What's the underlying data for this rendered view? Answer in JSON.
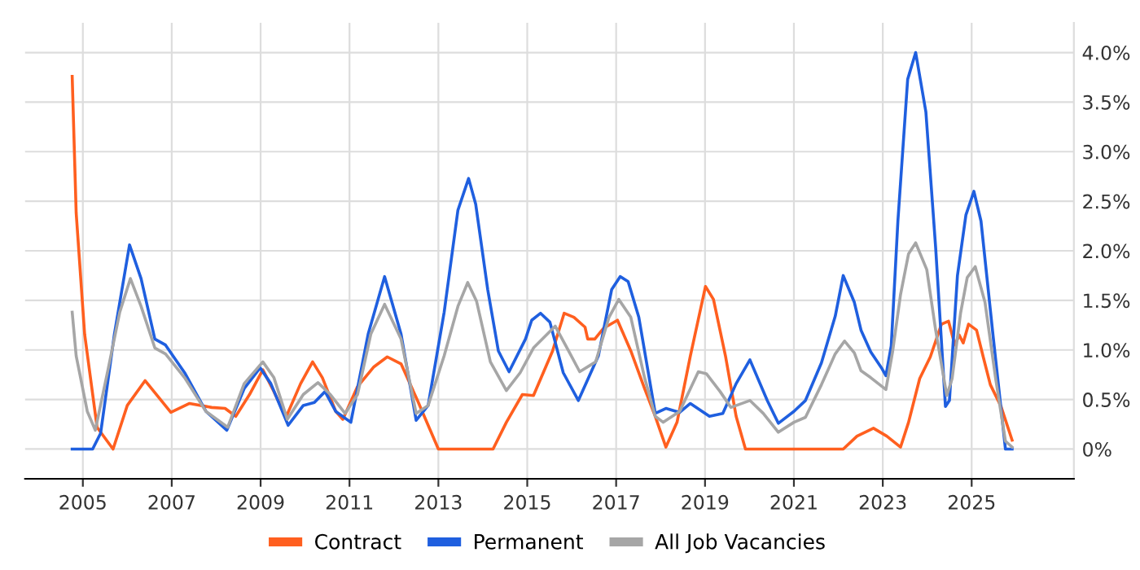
{
  "chart_data": {
    "type": "line",
    "xlim": [
      2003.7,
      2027.3
    ],
    "ylim": [
      -0.3,
      4.3
    ],
    "xticks": [
      2005,
      2007,
      2009,
      2011,
      2013,
      2015,
      2017,
      2019,
      2021,
      2023,
      2025
    ],
    "yticks": [
      {
        "value": 0,
        "label": "0%"
      },
      {
        "value": 0.5,
        "label": "0.5%"
      },
      {
        "value": 1,
        "label": "1.0%"
      },
      {
        "value": 1.5,
        "label": "1.5%"
      },
      {
        "value": 2,
        "label": "2.0%"
      },
      {
        "value": 2.5,
        "label": "2.5%"
      },
      {
        "value": 3,
        "label": "3.0%"
      },
      {
        "value": 3.5,
        "label": "3.5%"
      },
      {
        "value": 4,
        "label": "4.0%"
      }
    ],
    "grid": true,
    "legend": "bottom",
    "marker": "none",
    "line_style": "solid",
    "series": [
      {
        "name": "Contract",
        "color": "#ff5f1f",
        "x": [
          2004.76,
          2004.85,
          2005.04,
          2005.32,
          2005.68,
          2006.0,
          2006.4,
          2006.98,
          2007.4,
          2007.9,
          2008.2,
          2008.44,
          2008.75,
          2009.05,
          2009.3,
          2009.57,
          2009.9,
          2010.17,
          2010.39,
          2010.69,
          2010.85,
          2011.18,
          2011.55,
          2011.85,
          2012.16,
          2012.53,
          2013.0,
          2014.23,
          2014.53,
          2014.89,
          2015.14,
          2015.57,
          2015.83,
          2016.05,
          2016.3,
          2016.36,
          2016.52,
          2016.72,
          2017.03,
          2017.33,
          2017.64,
          2017.88,
          2018.12,
          2018.37,
          2018.67,
          2019.01,
          2019.19,
          2019.46,
          2019.7,
          2019.91,
          2022.11,
          2022.42,
          2022.79,
          2023.09,
          2023.4,
          2023.58,
          2023.83,
          2024.07,
          2024.32,
          2024.48,
          2024.62,
          2024.72,
          2024.81,
          2024.93,
          2025.11,
          2025.26,
          2025.42,
          2025.66,
          2025.91
        ],
        "values": [
          3.76,
          2.38,
          1.16,
          0.22,
          0,
          0.44,
          0.69,
          0.37,
          0.46,
          0.42,
          0.41,
          0.33,
          0.55,
          0.8,
          0.58,
          0.32,
          0.66,
          0.88,
          0.72,
          0.38,
          0.3,
          0.63,
          0.83,
          0.93,
          0.86,
          0.49,
          0,
          0,
          0.27,
          0.55,
          0.54,
          0.99,
          1.37,
          1.33,
          1.23,
          1.11,
          1.11,
          1.22,
          1.3,
          0.99,
          0.61,
          0.33,
          0.02,
          0.27,
          0.94,
          1.64,
          1.51,
          0.94,
          0.33,
          0,
          0,
          0.13,
          0.21,
          0.13,
          0.02,
          0.27,
          0.71,
          0.93,
          1.26,
          1.29,
          1.05,
          1.15,
          1.07,
          1.26,
          1.2,
          0.93,
          0.65,
          0.43,
          0.09
        ]
      },
      {
        "name": "Permanent",
        "color": "#1f5fdf",
        "x": [
          2004.76,
          2005.22,
          2005.4,
          2005.71,
          2006.05,
          2006.31,
          2006.62,
          2006.86,
          2007.29,
          2007.77,
          2008.24,
          2008.63,
          2008.99,
          2009.23,
          2009.62,
          2009.96,
          2010.21,
          2010.45,
          2010.69,
          2011.03,
          2011.42,
          2011.79,
          2012.16,
          2012.5,
          2012.77,
          2013.13,
          2013.44,
          2013.68,
          2013.84,
          2014.11,
          2014.35,
          2014.59,
          2014.96,
          2015.1,
          2015.3,
          2015.51,
          2015.81,
          2016.15,
          2016.6,
          2016.9,
          2017.09,
          2017.27,
          2017.51,
          2017.88,
          2018.12,
          2018.43,
          2018.67,
          2019.1,
          2019.4,
          2019.7,
          2020.01,
          2020.4,
          2020.65,
          2021.0,
          2021.26,
          2021.62,
          2021.93,
          2022.11,
          2022.36,
          2022.51,
          2022.73,
          2022.97,
          2023.07,
          2023.19,
          2023.34,
          2023.56,
          2023.74,
          2023.97,
          2024.19,
          2024.41,
          2024.5,
          2024.68,
          2024.87,
          2025.05,
          2025.21,
          2025.48,
          2025.76,
          2025.91
        ],
        "values": [
          0,
          0,
          0.16,
          1.16,
          2.06,
          1.72,
          1.11,
          1.05,
          0.77,
          0.38,
          0.19,
          0.61,
          0.82,
          0.66,
          0.24,
          0.44,
          0.47,
          0.58,
          0.38,
          0.27,
          1.16,
          1.74,
          1.16,
          0.29,
          0.44,
          1.38,
          2.41,
          2.73,
          2.47,
          1.61,
          0.99,
          0.78,
          1.11,
          1.3,
          1.37,
          1.28,
          0.77,
          0.49,
          0.94,
          1.61,
          1.74,
          1.69,
          1.33,
          0.36,
          0.41,
          0.37,
          0.46,
          0.33,
          0.36,
          0.66,
          0.9,
          0.49,
          0.26,
          0.38,
          0.49,
          0.87,
          1.34,
          1.75,
          1.48,
          1.2,
          0.98,
          0.82,
          0.74,
          1.04,
          2.3,
          3.73,
          4.0,
          3.4,
          2.03,
          0.43,
          0.49,
          1.75,
          2.36,
          2.6,
          2.3,
          1.15,
          0,
          0
        ]
      },
      {
        "name": "All Job Vacancies",
        "color": "#a6a6a6",
        "x": [
          2004.76,
          2004.85,
          2005.1,
          2005.28,
          2005.58,
          2005.83,
          2006.07,
          2006.31,
          2006.62,
          2006.86,
          2007.29,
          2007.77,
          2008.26,
          2008.63,
          2009.05,
          2009.3,
          2009.6,
          2009.96,
          2010.29,
          2010.57,
          2010.9,
          2011.18,
          2011.48,
          2011.79,
          2012.16,
          2012.5,
          2012.77,
          2013.13,
          2013.44,
          2013.66,
          2013.86,
          2014.17,
          2014.53,
          2014.84,
          2015.14,
          2015.63,
          2015.93,
          2016.18,
          2016.54,
          2016.84,
          2017.06,
          2017.33,
          2017.64,
          2017.88,
          2018.06,
          2018.43,
          2018.85,
          2019.03,
          2019.34,
          2019.58,
          2020.01,
          2020.31,
          2020.65,
          2021.0,
          2021.26,
          2021.62,
          2021.93,
          2022.14,
          2022.36,
          2022.51,
          2022.73,
          2023.07,
          2023.22,
          2023.4,
          2023.58,
          2023.74,
          2023.99,
          2024.19,
          2024.44,
          2024.56,
          2024.75,
          2024.9,
          2025.08,
          2025.3,
          2025.54,
          2025.76,
          2025.91
        ],
        "values": [
          1.38,
          0.94,
          0.38,
          0.19,
          0.83,
          1.38,
          1.72,
          1.44,
          1.02,
          0.96,
          0.72,
          0.38,
          0.22,
          0.66,
          0.88,
          0.72,
          0.3,
          0.55,
          0.67,
          0.55,
          0.36,
          0.55,
          1.16,
          1.46,
          1.11,
          0.36,
          0.44,
          0.94,
          1.44,
          1.68,
          1.49,
          0.88,
          0.59,
          0.77,
          1.02,
          1.24,
          0.99,
          0.78,
          0.88,
          1.33,
          1.51,
          1.33,
          0.72,
          0.33,
          0.27,
          0.38,
          0.78,
          0.76,
          0.58,
          0.42,
          0.49,
          0.36,
          0.17,
          0.27,
          0.32,
          0.65,
          0.96,
          1.09,
          0.97,
          0.79,
          0.72,
          0.6,
          0.98,
          1.56,
          1.97,
          2.08,
          1.81,
          1.2,
          0.54,
          0.71,
          1.37,
          1.73,
          1.84,
          1.48,
          0.71,
          0.08,
          0.02
        ]
      }
    ]
  }
}
